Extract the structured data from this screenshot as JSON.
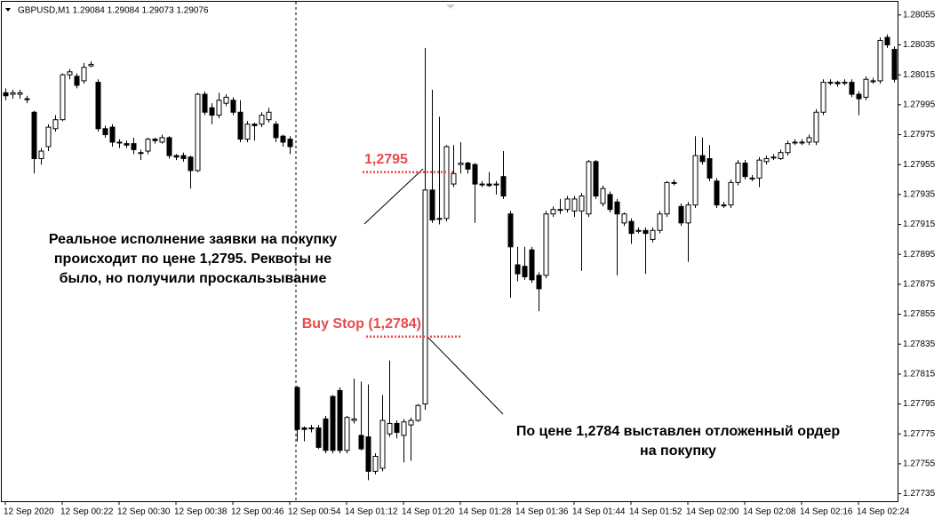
{
  "chart_data": {
    "type": "candlestick",
    "title": "GBPUSD,M1  1.29084 1.29084 1.29073 1.29076",
    "open": [
      1.28003,
      1.28002,
      1.28002,
      1.27999,
      1.2799,
      1.27959,
      1.27967,
      1.27979,
      1.27985,
      1.28015,
      1.28014,
      1.28011,
      1.28021,
      1.2801,
      1.27979,
      1.2798,
      1.2797,
      1.27969,
      1.27969,
      1.27963,
      1.27964,
      1.27972,
      1.2797,
      1.27973,
      1.27961,
      1.27961,
      1.2796,
      1.27951,
      1.28002,
      1.27993,
      1.27988,
      1.27996,
      1.27998,
      1.2799,
      1.27972,
      1.27982,
      1.27982,
      1.27985,
      1.27982,
      1.27974,
      1.27972,
      1.27806,
      1.27779,
      1.27779,
      1.27779,
      1.27785,
      1.278,
      1.27804,
      1.27764,
      1.27784,
      1.27774,
      1.27773,
      1.2775,
      1.27752,
      1.27775,
      1.27782,
      1.27774,
      1.27781,
      1.27784,
      1.27795,
      1.27938,
      1.27919,
      1.27919,
      1.27942,
      1.27955,
      1.27956,
      1.27955,
      1.27942,
      1.27942,
      1.27942,
      1.27947,
      1.27922,
      1.27888,
      1.27887,
      1.27898,
      1.27881,
      1.27881,
      1.27922,
      1.27925,
      1.27925,
      1.27924,
      1.27924,
      1.27922,
      1.27957,
      1.27929,
      1.27935,
      1.2793,
      1.27916,
      1.27917,
      1.27911,
      1.27911,
      1.27905,
      1.27911,
      1.27922,
      1.27943,
      1.27927,
      1.27916,
      1.27928,
      1.27961,
      1.27959,
      1.27944,
      1.27928,
      1.27928,
      1.27943,
      1.27956,
      1.27946,
      1.27946,
      1.27957,
      1.2796,
      1.27959,
      1.27963,
      1.2797,
      1.2797,
      1.2797,
      1.2797,
      1.2799,
      1.2801,
      1.2801,
      1.2801,
      1.2801,
      1.28002,
      1.28,
      1.28011,
      1.28011,
      1.2804,
      1.28032
    ],
    "high": [
      1.28006,
      1.28005,
      1.28005,
      1.28001,
      1.27991,
      1.27966,
      1.27982,
      1.27988,
      1.28016,
      1.28019,
      1.28016,
      1.28023,
      1.28024,
      1.28012,
      1.27981,
      1.27982,
      1.27972,
      1.27971,
      1.27973,
      1.27965,
      1.27973,
      1.27973,
      1.27975,
      1.27974,
      1.27962,
      1.27963,
      1.27961,
      1.28003,
      1.28004,
      1.27996,
      1.28003,
      1.28002,
      1.28,
      1.27998,
      1.27984,
      1.27983,
      1.2799,
      1.27993,
      1.27984,
      1.27975,
      1.27974,
      1.27807,
      1.2778,
      1.27781,
      1.27781,
      1.27787,
      1.27801,
      1.27806,
      1.27787,
      1.27812,
      1.2781,
      1.27808,
      1.27762,
      1.27801,
      1.27824,
      1.27784,
      1.27785,
      1.27786,
      1.27795,
      1.28033,
      1.28005,
      1.27987,
      1.27968,
      1.27968,
      1.2797,
      1.27957,
      1.27956,
      1.27944,
      1.2795,
      1.27944,
      1.27964,
      1.27924,
      1.279,
      1.279,
      1.279,
      1.27883,
      1.27924,
      1.27927,
      1.27932,
      1.27934,
      1.27934,
      1.27936,
      1.27958,
      1.27958,
      1.27941,
      1.27937,
      1.27932,
      1.27923,
      1.27919,
      1.27913,
      1.27913,
      1.27913,
      1.27924,
      1.27944,
      1.27945,
      1.27929,
      1.2793,
      1.27974,
      1.27973,
      1.27968,
      1.27946,
      1.2793,
      1.27945,
      1.27958,
      1.27958,
      1.27948,
      1.2796,
      1.27961,
      1.27962,
      1.27965,
      1.27971,
      1.27972,
      1.27972,
      1.27975,
      1.27992,
      1.28012,
      1.28012,
      1.28011,
      1.28012,
      1.28012,
      1.28004,
      1.28014,
      1.28013,
      1.2804,
      1.28042,
      1.28034
    ],
    "low": [
      1.27998,
      1.27999,
      1.27999,
      1.27996,
      1.27949,
      1.27955,
      1.27964,
      1.27977,
      1.27984,
      1.28012,
      1.28006,
      1.28009,
      1.2802,
      1.27977,
      1.27973,
      1.27967,
      1.27966,
      1.27966,
      1.27962,
      1.27958,
      1.27962,
      1.27969,
      1.27969,
      1.27959,
      1.27958,
      1.27957,
      1.27939,
      1.2795,
      1.27988,
      1.27982,
      1.27986,
      1.27994,
      1.27988,
      1.2797,
      1.2797,
      1.27971,
      1.2798,
      1.27983,
      1.2797,
      1.27967,
      1.27962,
      1.2777,
      1.2777,
      1.27776,
      1.27765,
      1.27762,
      1.27762,
      1.27762,
      1.27762,
      1.27782,
      1.27764,
      1.27744,
      1.27748,
      1.2775,
      1.27773,
      1.27772,
      1.27756,
      1.27757,
      1.27783,
      1.27791,
      1.27916,
      1.27915,
      1.27917,
      1.2794,
      1.27949,
      1.27949,
      1.27916,
      1.2794,
      1.2794,
      1.27935,
      1.27932,
      1.27866,
      1.27877,
      1.27878,
      1.27876,
      1.27857,
      1.27879,
      1.2792,
      1.27922,
      1.27923,
      1.2792,
      1.27884,
      1.2792,
      1.27932,
      1.27927,
      1.27923,
      1.27881,
      1.27914,
      1.27902,
      1.27909,
      1.27882,
      1.27903,
      1.27909,
      1.2792,
      1.27941,
      1.27914,
      1.2789,
      1.27926,
      1.27955,
      1.27944,
      1.27926,
      1.27926,
      1.27926,
      1.27941,
      1.27945,
      1.27944,
      1.2794,
      1.27955,
      1.27958,
      1.27958,
      1.27961,
      1.27968,
      1.27968,
      1.27968,
      1.27968,
      1.27988,
      1.28008,
      1.28007,
      1.28008,
      1.28,
      1.27988,
      1.27998,
      1.28009,
      1.28009,
      1.28033,
      1.2801
    ],
    "close": [
      1.28001,
      1.28003,
      1.28003,
      1.27999,
      1.27959,
      1.27964,
      1.2798,
      1.27985,
      1.28015,
      1.28017,
      1.28008,
      1.2802,
      1.28022,
      1.27979,
      1.27975,
      1.2797,
      1.2797,
      1.27968,
      1.27965,
      1.27963,
      1.27972,
      1.27971,
      1.27973,
      1.27961,
      1.2796,
      1.27959,
      1.27951,
      1.28002,
      1.2799,
      1.27988,
      1.27998,
      1.28,
      1.2799,
      1.27972,
      1.27982,
      1.27981,
      1.27988,
      1.2799,
      1.27973,
      1.2797,
      1.27967,
      1.27778,
      1.27778,
      1.27779,
      1.27766,
      1.27764,
      1.27764,
      1.27764,
      1.27786,
      1.27785,
      1.27765,
      1.2775,
      1.2776,
      1.27784,
      1.27782,
      1.27776,
      1.27783,
      1.27784,
      1.27794,
      1.27938,
      1.27918,
      1.27919,
      1.27967,
      1.27949,
      1.27956,
      1.27952,
      1.27942,
      1.27942,
      1.27941,
      1.27942,
      1.27934,
      1.279,
      1.27882,
      1.2788,
      1.27878,
      1.27872,
      1.27922,
      1.27925,
      1.27925,
      1.27932,
      1.27932,
      1.27934,
      1.27957,
      1.27934,
      1.27939,
      1.27925,
      1.27922,
      1.27922,
      1.27909,
      1.27911,
      1.27909,
      1.27911,
      1.27922,
      1.27943,
      1.27943,
      1.27916,
      1.27928,
      1.27961,
      1.27957,
      1.27946,
      1.27928,
      1.27928,
      1.27943,
      1.27956,
      1.27947,
      1.27946,
      1.27958,
      1.27959,
      1.2796,
      1.27963,
      1.27969,
      1.2797,
      1.2797,
      1.27973,
      1.2799,
      1.2801,
      1.2801,
      1.28009,
      1.2801,
      1.28002,
      1.27999,
      1.28012,
      1.28011,
      1.28038,
      1.28035,
      1.28012
    ],
    "ylim": [
      1.2773,
      1.28065
    ],
    "yticks": [
      1.28055,
      1.28035,
      1.28015,
      1.27995,
      1.27975,
      1.27955,
      1.27935,
      1.27915,
      1.27895,
      1.27875,
      1.27855,
      1.27835,
      1.27815,
      1.27795,
      1.27775,
      1.27755,
      1.27735
    ],
    "xticks": [
      {
        "value": 0,
        "label": "12 Sep 2020"
      },
      {
        "value": 8,
        "label": "12 Sep 00:22"
      },
      {
        "value": 16,
        "label": "12 Sep 00:30"
      },
      {
        "value": 24,
        "label": "12 Sep 00:38"
      },
      {
        "value": 32,
        "label": "12 Sep 00:46"
      },
      {
        "value": 40,
        "label": "12 Sep 00:54"
      },
      {
        "value": 48,
        "label": "14 Sep 01:12"
      },
      {
        "value": 56,
        "label": "14 Sep 01:20"
      },
      {
        "value": 64,
        "label": "14 Sep 01:28"
      },
      {
        "value": 72,
        "label": "14 Sep 01:36"
      },
      {
        "value": 80,
        "label": "14 Sep 01:44"
      },
      {
        "value": 88,
        "label": "14 Sep 01:52"
      },
      {
        "value": 96,
        "label": "14 Sep 02:00"
      },
      {
        "value": 104,
        "label": "14 Sep 02:08"
      },
      {
        "value": 112,
        "label": "14 Sep 02:16"
      },
      {
        "value": 120,
        "label": "14 Sep 02:24"
      }
    ],
    "levels": [
      {
        "label": "1,2795",
        "value": 1.2795,
        "color": "#e84a4a"
      },
      {
        "label": "Buy Stop (1,2784)",
        "value": 1.2784,
        "color": "#e84a4a"
      }
    ],
    "annotations": [
      [
        "Реальное исполнение заявки на покупку",
        "происходит по цене 1,2795. Реквоты не",
        "было, но получили проскальзывание"
      ],
      [
        "По цене 1,2784 выставлен отложенный ордер",
        "на покупку"
      ]
    ]
  }
}
